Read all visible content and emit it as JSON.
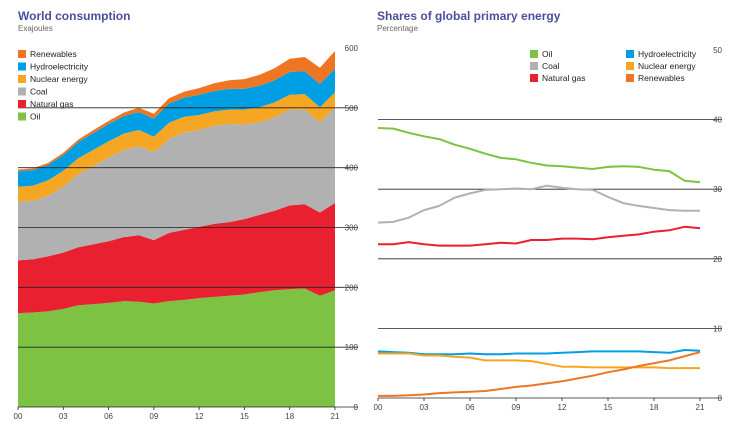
{
  "chart_data": [
    {
      "type": "area",
      "title": "World consumption",
      "subtitle": "Exajoules",
      "x_tick_labels": [
        "00",
        "03",
        "06",
        "09",
        "12",
        "15",
        "18",
        "21"
      ],
      "y_tick_labels": [
        "0",
        "100",
        "200",
        "300",
        "400",
        "500",
        "600"
      ],
      "ylim": [
        0,
        600
      ],
      "stacked": true,
      "legend_placement": "top-left",
      "x": [
        2000,
        2001,
        2002,
        2003,
        2004,
        2005,
        2006,
        2007,
        2008,
        2009,
        2010,
        2011,
        2012,
        2013,
        2014,
        2015,
        2016,
        2017,
        2018,
        2019,
        2020,
        2021
      ],
      "series": [
        {
          "name": "Oil",
          "color": "#7dc242",
          "values": [
            157,
            158,
            160,
            164,
            170,
            172,
            174,
            177,
            176,
            173,
            177,
            179,
            182,
            184,
            186,
            188,
            192,
            195,
            197,
            198,
            186,
            195
          ]
        },
        {
          "name": "Natural gas",
          "color": "#e8202f",
          "values": [
            88,
            89,
            92,
            94,
            97,
            100,
            103,
            107,
            111,
            106,
            114,
            117,
            119,
            122,
            123,
            126,
            129,
            133,
            140,
            141,
            139,
            146
          ]
        },
        {
          "name": "Coal",
          "color": "#b1b1b1",
          "values": [
            98,
            98,
            101,
            111,
            122,
            131,
            140,
            146,
            149,
            147,
            157,
            163,
            162,
            164,
            164,
            158,
            155,
            156,
            160,
            158,
            151,
            160
          ]
        },
        {
          "name": "Nuclear energy",
          "color": "#f5a623",
          "values": [
            25,
            25,
            26,
            26,
            27,
            27,
            27,
            27,
            27,
            26,
            27,
            26,
            25,
            24,
            24,
            25,
            25,
            25,
            25,
            26,
            25,
            25
          ]
        },
        {
          "name": "Hydroelectricity",
          "color": "#009fe3",
          "values": [
            26,
            26,
            26,
            26,
            27,
            28,
            29,
            29,
            30,
            30,
            32,
            32,
            34,
            34,
            35,
            35,
            36,
            37,
            38,
            38,
            39,
            39
          ]
        },
        {
          "name": "Renewables",
          "color": "#ee7623",
          "values": [
            3,
            3,
            3,
            4,
            4,
            5,
            5,
            6,
            7,
            8,
            9,
            10,
            11,
            13,
            14,
            16,
            18,
            20,
            22,
            24,
            27,
            30
          ]
        }
      ]
    },
    {
      "type": "line",
      "title": "Shares of global primary energy",
      "subtitle": "Percentage",
      "x_tick_labels": [
        "00",
        "03",
        "06",
        "09",
        "12",
        "15",
        "18",
        "21"
      ],
      "y_tick_labels": [
        "0",
        "10",
        "20",
        "30",
        "40",
        "50"
      ],
      "ylim": [
        0,
        50
      ],
      "legend_placement": "top",
      "x": [
        2000,
        2001,
        2002,
        2003,
        2004,
        2005,
        2006,
        2007,
        2008,
        2009,
        2010,
        2011,
        2012,
        2013,
        2014,
        2015,
        2016,
        2017,
        2018,
        2019,
        2020,
        2021
      ],
      "series": [
        {
          "name": "Oil",
          "color": "#7dc242",
          "values": [
            38.8,
            38.7,
            38.1,
            37.6,
            37.2,
            36.4,
            35.8,
            35.1,
            34.5,
            34.3,
            33.8,
            33.4,
            33.3,
            33.1,
            32.9,
            33.2,
            33.3,
            33.2,
            32.8,
            32.6,
            31.2,
            31.0
          ]
        },
        {
          "name": "Coal",
          "color": "#b1b1b1",
          "values": [
            25.2,
            25.3,
            25.9,
            27.0,
            27.6,
            28.8,
            29.4,
            29.9,
            30.0,
            30.1,
            30.0,
            30.5,
            30.2,
            30.0,
            29.9,
            28.9,
            28.0,
            27.6,
            27.3,
            27.0,
            26.9,
            26.9
          ]
        },
        {
          "name": "Natural gas",
          "color": "#e8202f",
          "values": [
            22.1,
            22.1,
            22.4,
            22.1,
            21.9,
            21.9,
            21.9,
            22.1,
            22.3,
            22.2,
            22.7,
            22.7,
            22.9,
            22.9,
            22.8,
            23.1,
            23.3,
            23.5,
            23.9,
            24.1,
            24.6,
            24.4
          ]
        },
        {
          "name": "Hydroelectricity",
          "color": "#009fe3",
          "values": [
            6.7,
            6.6,
            6.5,
            6.3,
            6.3,
            6.3,
            6.4,
            6.3,
            6.3,
            6.4,
            6.4,
            6.4,
            6.5,
            6.6,
            6.7,
            6.7,
            6.7,
            6.7,
            6.6,
            6.5,
            6.9,
            6.8
          ]
        },
        {
          "name": "Nuclear energy",
          "color": "#f5a623",
          "values": [
            6.4,
            6.4,
            6.4,
            6.1,
            6.1,
            5.9,
            5.8,
            5.4,
            5.4,
            5.4,
            5.3,
            4.9,
            4.5,
            4.5,
            4.4,
            4.4,
            4.4,
            4.4,
            4.4,
            4.3,
            4.3,
            4.3
          ]
        },
        {
          "name": "Renewables",
          "color": "#ee7623",
          "values": [
            0.3,
            0.3,
            0.4,
            0.5,
            0.7,
            0.8,
            0.9,
            1.0,
            1.3,
            1.6,
            1.8,
            2.1,
            2.4,
            2.8,
            3.2,
            3.7,
            4.1,
            4.6,
            5.0,
            5.4,
            6.0,
            6.6
          ]
        }
      ]
    }
  ]
}
